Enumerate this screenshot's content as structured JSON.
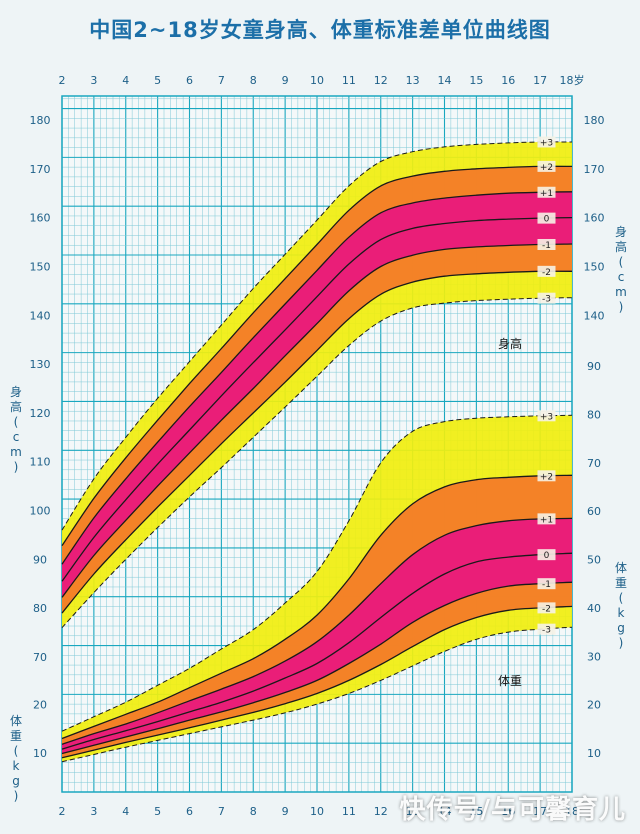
{
  "title": "中国2~18岁女童身高、体重标准差单位曲线图",
  "watermark": "快传号/与可馨育儿",
  "colors": {
    "background": "#eef4f6",
    "grid_major": "#1aa7bf",
    "grid_minor": "#7fc9d6",
    "band_outer": "#f0ee10",
    "band_middle": "#f47a28",
    "band_inner": "#e8177f",
    "line": "#1a1a1a",
    "tick_text": "#1d5f88"
  },
  "chart_data": [
    {
      "type": "line",
      "name": "height",
      "panel_label": "身高",
      "ylabel_left": "身高(cm)",
      "ylabel_right": "身高(cm)",
      "x": [
        2,
        3,
        4,
        5,
        6,
        7,
        8,
        9,
        10,
        11,
        12,
        13,
        14,
        15,
        16,
        17,
        18
      ],
      "x_tick_labels": [
        "2",
        "3",
        "4",
        "5",
        "6",
        "7",
        "8",
        "9",
        "10",
        "11",
        "12",
        "13",
        "14",
        "15",
        "16",
        "17",
        "18岁"
      ],
      "xlim": [
        2,
        18
      ],
      "ylim": [
        67,
        182
      ],
      "y_ticks_left": [
        70,
        80,
        90,
        100,
        110,
        120,
        130,
        140,
        150,
        160,
        170,
        180
      ],
      "y_ticks_right": [
        140,
        150,
        160,
        170,
        180
      ],
      "grid": true,
      "series": [
        {
          "name": "+3",
          "values": [
            96.0,
            106.5,
            115.0,
            123.0,
            130.5,
            138.0,
            145.5,
            152.5,
            159.5,
            166.5,
            171.5,
            173.5,
            174.5,
            175.0,
            175.3,
            175.5,
            175.5
          ]
        },
        {
          "name": "+2",
          "values": [
            92.8,
            102.5,
            110.8,
            118.5,
            126.0,
            133.2,
            140.5,
            147.5,
            154.5,
            161.5,
            166.5,
            168.5,
            169.5,
            170.0,
            170.3,
            170.5,
            170.5
          ]
        },
        {
          "name": "+1",
          "values": [
            89.0,
            98.5,
            106.5,
            114.0,
            121.3,
            128.3,
            135.4,
            142.3,
            149.2,
            156.0,
            161.0,
            163.0,
            164.0,
            164.6,
            165.0,
            165.2,
            165.3
          ]
        },
        {
          "name": "0",
          "values": [
            85.5,
            94.5,
            102.2,
            109.5,
            116.5,
            123.5,
            130.3,
            137.0,
            143.8,
            150.5,
            155.5,
            157.8,
            158.8,
            159.4,
            159.7,
            159.9,
            160.0
          ]
        },
        {
          "name": "-1",
          "values": [
            82.2,
            90.8,
            98.0,
            105.0,
            111.8,
            118.5,
            125.0,
            131.7,
            138.3,
            145.0,
            150.0,
            152.3,
            153.5,
            154.0,
            154.3,
            154.5,
            154.6
          ]
        },
        {
          "name": "-2",
          "values": [
            79.0,
            87.0,
            94.0,
            100.7,
            107.2,
            113.7,
            120.0,
            126.3,
            132.8,
            139.3,
            144.3,
            146.8,
            148.0,
            148.5,
            148.8,
            149.0,
            149.0
          ]
        },
        {
          "name": "-3",
          "values": [
            76.0,
            83.2,
            90.0,
            96.5,
            102.8,
            108.8,
            115.0,
            121.2,
            127.5,
            133.8,
            138.8,
            141.5,
            142.5,
            143.0,
            143.3,
            143.5,
            143.6
          ]
        }
      ]
    },
    {
      "type": "line",
      "name": "weight",
      "panel_label": "体重",
      "ylabel_left": "体重(kg)",
      "ylabel_right": "体重(kg)",
      "x": [
        2,
        3,
        4,
        5,
        6,
        7,
        8,
        9,
        10,
        11,
        12,
        13,
        14,
        15,
        16,
        17,
        18
      ],
      "x_tick_labels": [
        "2",
        "3",
        "4",
        "5",
        "6",
        "7",
        "8",
        "9",
        "10",
        "11",
        "12",
        "13",
        "14",
        "15",
        "16",
        "17",
        "18"
      ],
      "xlim": [
        2,
        18
      ],
      "ylim": [
        2,
        97
      ],
      "y_ticks_left": [
        10,
        20
      ],
      "y_ticks_right": [
        10,
        20,
        30,
        40,
        50,
        60,
        70,
        80,
        90
      ],
      "grid": true,
      "series": [
        {
          "name": "+3",
          "values": [
            14.5,
            17.5,
            20.5,
            24.0,
            27.5,
            31.5,
            35.5,
            41.0,
            47.5,
            58.0,
            70.0,
            76.5,
            78.5,
            79.2,
            79.5,
            79.7,
            79.8
          ]
        },
        {
          "name": "+2",
          "values": [
            13.0,
            15.5,
            18.0,
            20.5,
            23.5,
            26.5,
            29.5,
            33.5,
            38.5,
            46.0,
            55.0,
            61.5,
            65.0,
            66.5,
            67.0,
            67.3,
            67.4
          ]
        },
        {
          "name": "+1",
          "values": [
            11.8,
            14.0,
            16.0,
            18.3,
            20.8,
            23.2,
            25.8,
            29.0,
            33.0,
            38.5,
            45.0,
            51.0,
            55.0,
            57.0,
            58.0,
            58.4,
            58.5
          ]
        },
        {
          "name": "0",
          "values": [
            10.8,
            12.8,
            14.6,
            16.5,
            18.5,
            20.5,
            22.8,
            25.5,
            28.5,
            32.8,
            38.0,
            43.0,
            47.0,
            49.5,
            50.5,
            51.0,
            51.3
          ]
        },
        {
          "name": "-1",
          "values": [
            9.9,
            11.6,
            13.3,
            15.0,
            16.8,
            18.5,
            20.4,
            22.5,
            25.0,
            28.5,
            32.5,
            37.0,
            40.5,
            43.0,
            44.5,
            45.0,
            45.3
          ]
        },
        {
          "name": "-2",
          "values": [
            9.0,
            10.6,
            12.2,
            13.7,
            15.2,
            16.8,
            18.4,
            20.2,
            22.3,
            25.0,
            28.3,
            32.0,
            35.5,
            38.0,
            39.5,
            40.0,
            40.3
          ]
        },
        {
          "name": "-3",
          "values": [
            8.2,
            9.7,
            11.2,
            12.6,
            14.0,
            15.4,
            16.8,
            18.3,
            20.1,
            22.3,
            25.0,
            28.0,
            31.0,
            33.5,
            35.0,
            35.6,
            36.0
          ]
        }
      ]
    }
  ]
}
